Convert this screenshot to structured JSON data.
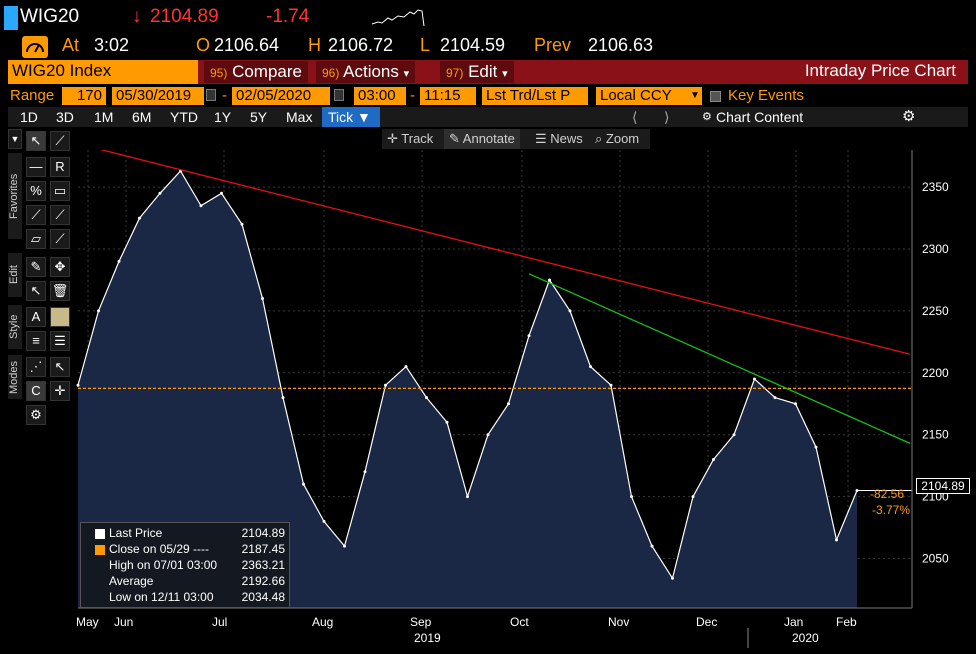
{
  "quote": {
    "ticker": "WIG20",
    "last": "2104.89",
    "last_arrow": "↓",
    "change": "-1.74",
    "time_label": "At",
    "time": "3:02",
    "open_label": "O",
    "open": "2106.64",
    "high_label": "H",
    "high": "2106.72",
    "low_label": "L",
    "low": "2104.59",
    "prev_label": "Prev",
    "prev": "2106.63"
  },
  "header": {
    "security": "WIG20 Index",
    "compare_num": "95)",
    "compare": "Compare",
    "actions_num": "96)",
    "actions": "Actions",
    "edit_num": "97)",
    "edit": "Edit",
    "title": "Intraday Price Chart"
  },
  "range_bar": {
    "range_label": "Range",
    "range_days": "170",
    "start_date": "05/30/2019",
    "dash": "-",
    "end_date": "02/05/2020",
    "start_time": "03:00",
    "end_time": "11:15",
    "price_type": "Lst Trd/Lst P",
    "currency": "Local CCY",
    "key_events": "Key Events"
  },
  "periods": [
    "1D",
    "3D",
    "1M",
    "6M",
    "YTD",
    "1Y",
    "5Y",
    "Max",
    "Tick ▼"
  ],
  "chart_content": "Chart Content",
  "toolbar": {
    "track": "Track",
    "annotate": "Annotate",
    "news": "News",
    "zoom": "Zoom"
  },
  "side_tabs": [
    "Favorites",
    "Edit",
    "Style",
    "Modes"
  ],
  "legend": {
    "last_price_label": "Last Price",
    "last_price": "2104.89",
    "close_label": "Close on 05/29 ----",
    "close": "2187.45",
    "high_label": "High on 07/01 03:00",
    "high": "2363.21",
    "average_label": "Average",
    "average": "2192.66",
    "low_label": "Low on 12/11 03:00",
    "low": "2034.48"
  },
  "price_callouts": {
    "last": "2104.89",
    "change": "-82.56",
    "change_pct": "-3.77%"
  },
  "colors": {
    "amber": "#ff9a00",
    "header_red": "#8b1118",
    "area_fill": "#1a2846",
    "trend_red": "#e01010",
    "trend_green": "#18c018",
    "selected_blue": "#1f6bc4"
  },
  "chart_data": {
    "type": "area",
    "y_ticks": [
      2050,
      2100,
      2150,
      2200,
      2250,
      2300,
      2350
    ],
    "ylim": [
      2010,
      2380
    ],
    "x_month_labels": [
      "May",
      "Jun",
      "Jul",
      "Aug",
      "Sep",
      "Oct",
      "Nov",
      "Dec",
      "Jan",
      "Feb"
    ],
    "x_year_labels": [
      "2019",
      "2020"
    ],
    "x": [
      "05/30",
      "06/07",
      "06/14",
      "06/21",
      "06/28",
      "07/01",
      "07/08",
      "07/15",
      "07/22",
      "07/29",
      "08/05",
      "08/12",
      "08/19",
      "08/26",
      "09/02",
      "09/09",
      "09/16",
      "09/23",
      "09/30",
      "10/07",
      "10/14",
      "10/21",
      "10/28",
      "11/04",
      "11/11",
      "11/18",
      "11/25",
      "12/02",
      "12/09",
      "12/11",
      "12/16",
      "12/23",
      "12/30",
      "01/06",
      "01/13",
      "01/20",
      "01/27",
      "02/03",
      "02/05"
    ],
    "values": [
      2190,
      2250,
      2290,
      2325,
      2345,
      2363,
      2335,
      2345,
      2320,
      2260,
      2180,
      2110,
      2080,
      2060,
      2120,
      2190,
      2205,
      2180,
      2160,
      2100,
      2150,
      2175,
      2230,
      2275,
      2250,
      2205,
      2190,
      2100,
      2060,
      2034,
      2100,
      2130,
      2150,
      2195,
      2180,
      2175,
      2140,
      2065,
      2104.89
    ],
    "reference_line": {
      "name": "Close on 05/29",
      "value": 2187.45
    },
    "trend_lines": [
      {
        "color": "red",
        "from": {
          "x": "05/30",
          "y": 2385
        },
        "to": {
          "x": "02/20",
          "y": 2215
        }
      },
      {
        "color": "green",
        "from": {
          "x": "10/28",
          "y": 2280
        },
        "to": {
          "x": "02/20",
          "y": 2143
        }
      }
    ],
    "grid": true
  }
}
